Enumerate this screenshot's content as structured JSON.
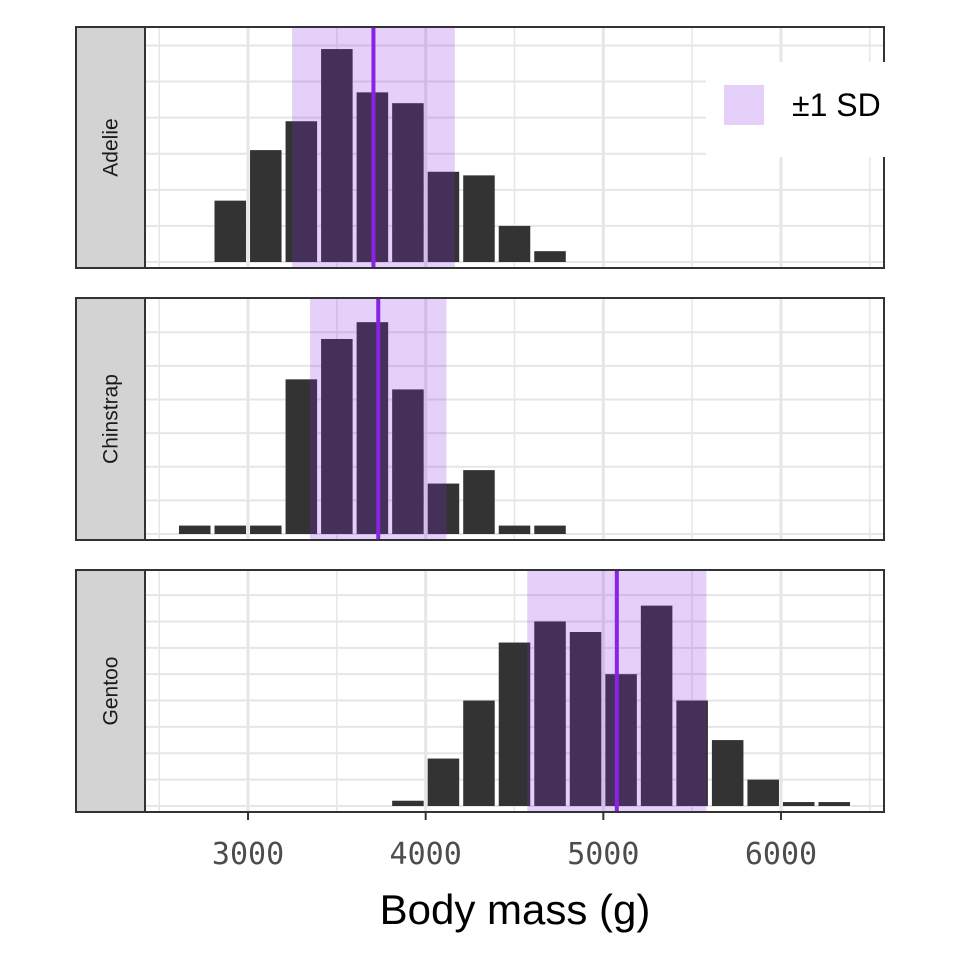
{
  "chart_data": {
    "type": "bar",
    "xlabel": "Body mass (g)",
    "x_ticks": [
      3000,
      4000,
      5000,
      6000
    ],
    "xlim": [
      2420,
      6580
    ],
    "bin_width": 200,
    "legend": {
      "label": "±1 SD",
      "position": "top-right"
    },
    "colors": {
      "bar": "#333333",
      "band": "#8a2be2",
      "band_alpha": 0.22,
      "mean_line": "#8a22e8",
      "strip_bg": "#d3d3d3",
      "grid": "#e6e6e6"
    },
    "facets": [
      {
        "name": "Adelie",
        "mean": 3706,
        "sd": 458,
        "ymax": 6.4,
        "bins_center": [
          2900,
          3100,
          3300,
          3500,
          3700,
          3900,
          4100,
          4300,
          4500,
          4700
        ],
        "counts": [
          1.7,
          3.1,
          3.9,
          5.9,
          4.7,
          4.4,
          2.5,
          2.4,
          1.0,
          0.3
        ]
      },
      {
        "name": "Chinstrap",
        "mean": 3733,
        "sd": 384,
        "ymax": 6.9,
        "bins_center": [
          2700,
          2900,
          3100,
          3300,
          3500,
          3700,
          3900,
          4100,
          4300,
          4500,
          4700
        ],
        "counts": [
          0.25,
          0.25,
          0.25,
          4.6,
          5.8,
          6.3,
          4.3,
          1.5,
          1.9,
          0.25,
          0.25
        ]
      },
      {
        "name": "Gentoo",
        "mean": 5076,
        "sd": 504,
        "ymax": 8.8,
        "bins_center": [
          3900,
          4100,
          4300,
          4500,
          4700,
          4900,
          5100,
          5300,
          5500,
          5700,
          5900,
          6100,
          6300
        ],
        "counts": [
          0.2,
          1.8,
          4.0,
          6.2,
          7.0,
          6.6,
          5.0,
          7.6,
          4.0,
          2.5,
          1.0,
          0.15,
          0.15
        ]
      }
    ]
  }
}
